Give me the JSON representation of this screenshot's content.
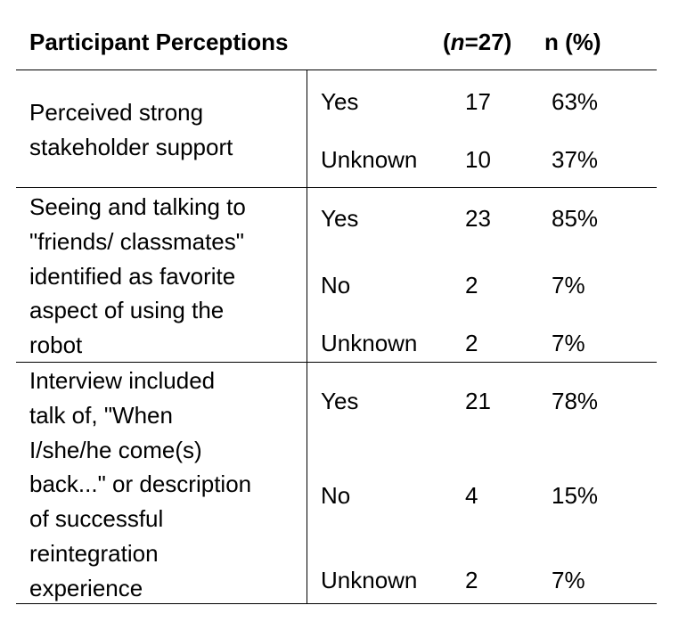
{
  "table": {
    "header": {
      "perception": "Participant Perceptions",
      "count_open": "(",
      "count_var": "n",
      "count_rest": "=27)",
      "percent": "n (%)"
    },
    "groups": [
      {
        "perception": "Perceived strong\nstakeholder support",
        "rows": [
          {
            "response": "Yes",
            "n": "17",
            "pct": "63%"
          },
          {
            "response": "Unknown",
            "n": "10",
            "pct": "37%"
          }
        ]
      },
      {
        "perception": "Seeing and talking to\n\"friends/ classmates\"\nidentified as favorite\naspect of using the\nrobot",
        "rows": [
          {
            "response": "Yes",
            "n": "23",
            "pct": "85%"
          },
          {
            "response": "No",
            "n": "2",
            "pct": "7%"
          },
          {
            "response": "Unknown",
            "n": "2",
            "pct": "7%"
          }
        ]
      },
      {
        "perception": "Interview included\ntalk of, \"When\nI/she/he come(s)\nback...\" or description\nof successful\nreintegration\nexperience",
        "rows": [
          {
            "response": "Yes",
            "n": "21",
            "pct": "78%"
          },
          {
            "response": "No",
            "n": "4",
            "pct": "15%"
          },
          {
            "response": "Unknown",
            "n": "2",
            "pct": "7%"
          }
        ]
      }
    ]
  }
}
